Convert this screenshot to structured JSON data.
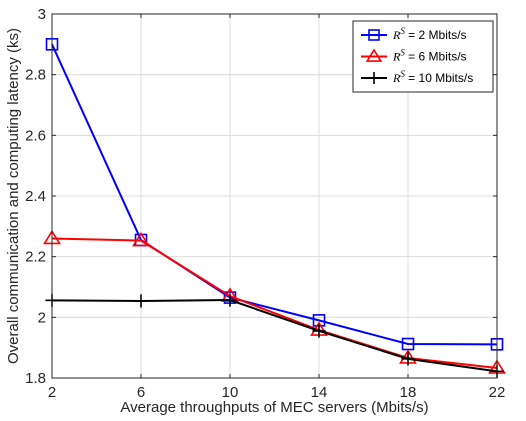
{
  "chart_data": {
    "type": "line",
    "title": "",
    "xlabel": "Average throughputs of MEC servers (Mbits/s)",
    "ylabel": "Overall communication and computing latency (ks)",
    "x": [
      2,
      6,
      10,
      14,
      18,
      22
    ],
    "xlim": [
      2,
      22
    ],
    "ylim": [
      1.8,
      3.0
    ],
    "xticks": [
      "2",
      "6",
      "10",
      "14",
      "18",
      "22"
    ],
    "yticks": [
      "1.8",
      "2",
      "2.2",
      "2.4",
      "2.6",
      "2.8",
      "3"
    ],
    "grid": true,
    "legend_position": "top-right",
    "series": [
      {
        "name": "R^S = 2 Mbits/s",
        "symbol": "R",
        "superscript": "S",
        "suffix": " = 2 Mbits/s",
        "color": "#0000ff",
        "marker": "square",
        "values": [
          2.9,
          2.255,
          2.065,
          1.99,
          1.912,
          1.911
        ]
      },
      {
        "name": "R^S = 6 Mbits/s",
        "symbol": "R",
        "superscript": "S",
        "suffix": " = 6 Mbits/s",
        "color": "#ff0000",
        "marker": "triangle",
        "values": [
          2.26,
          2.253,
          2.07,
          1.958,
          1.866,
          1.833
        ]
      },
      {
        "name": "R^S = 10 Mbits/s",
        "symbol": "R",
        "superscript": "S",
        "suffix": " = 10 Mbits/s",
        "color": "#000000",
        "marker": "plus",
        "values": [
          2.056,
          2.054,
          2.057,
          1.955,
          1.863,
          1.822
        ]
      }
    ]
  }
}
